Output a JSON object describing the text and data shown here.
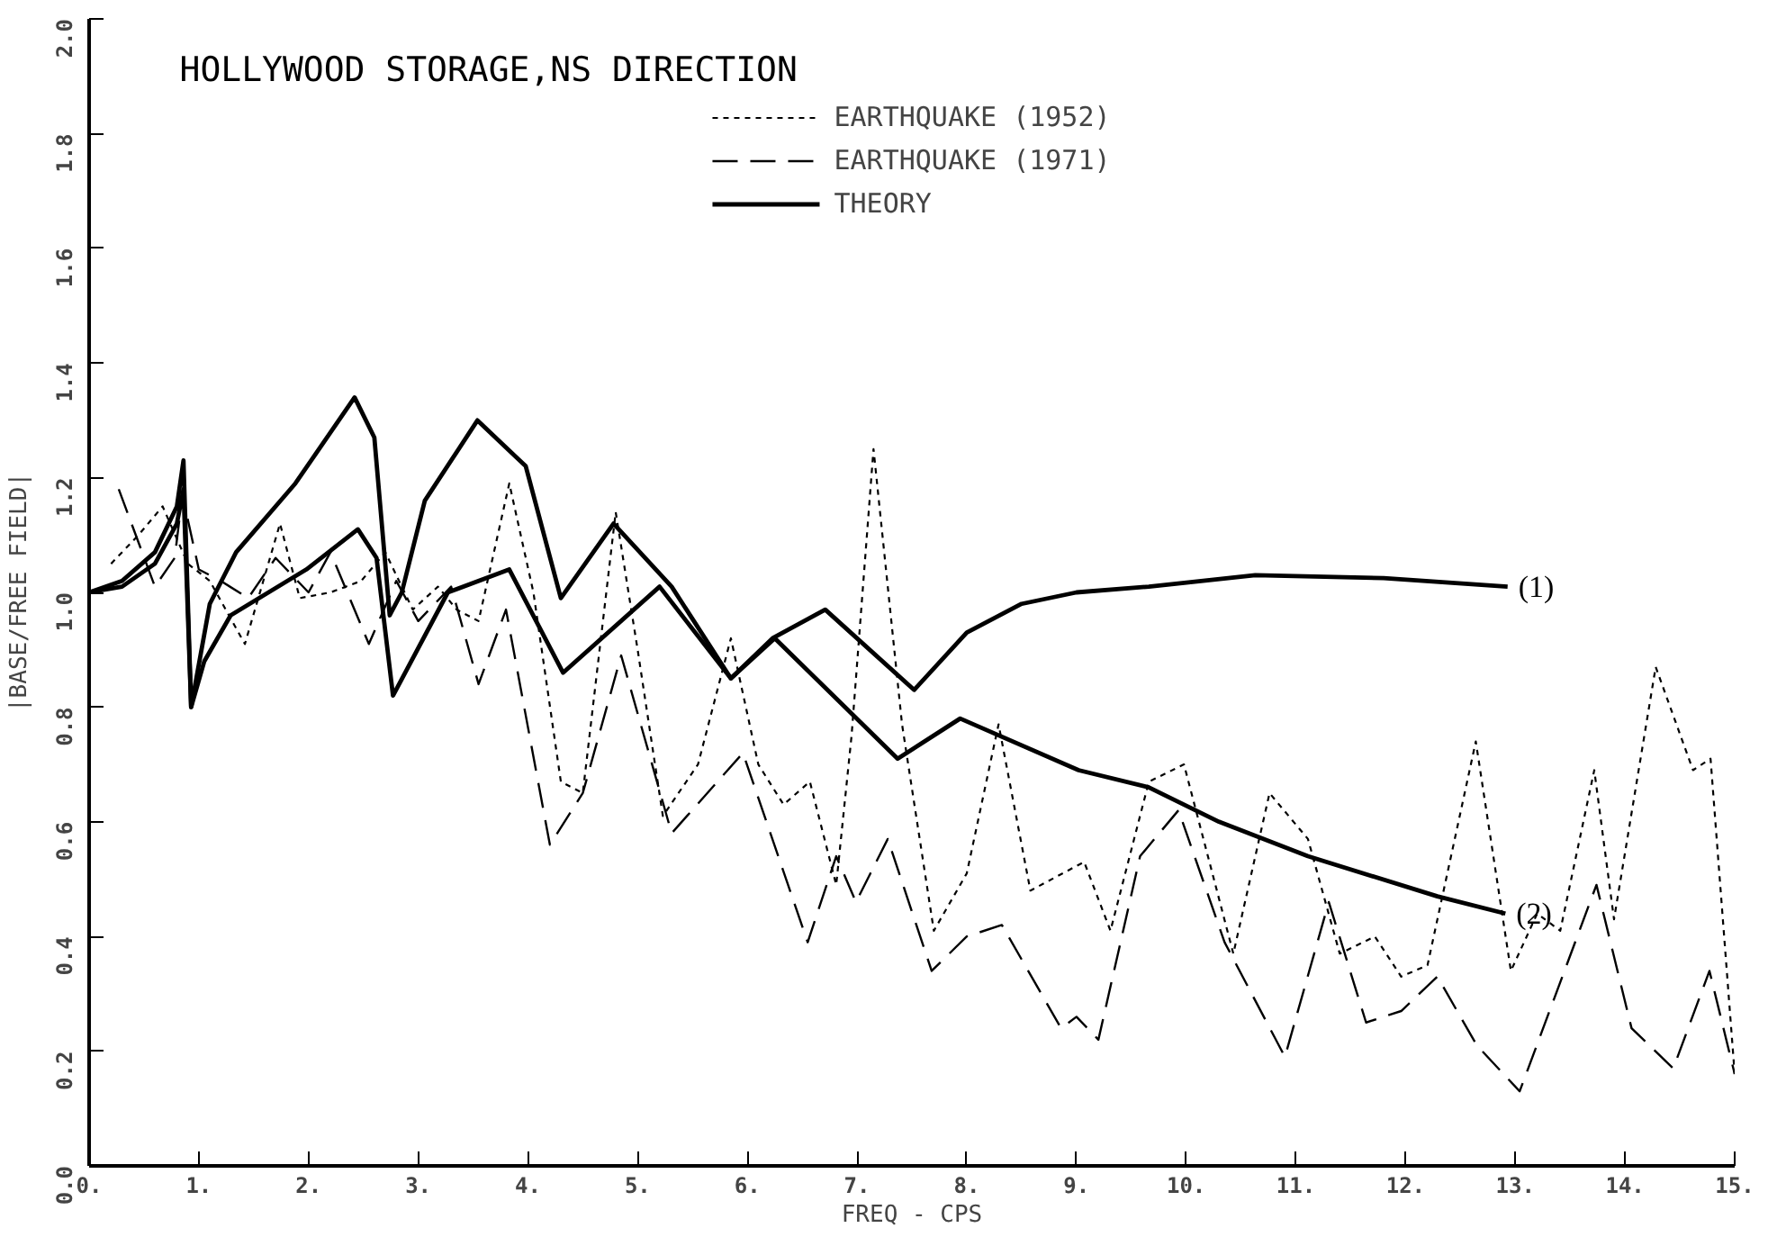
{
  "chart_data": {
    "type": "line",
    "title": "HOLLYWOOD STORAGE,NS DIRECTION",
    "xlabel": "FREQ - CPS",
    "ylabel": "|BASE/FREE FIELD|",
    "xlim": [
      0,
      15
    ],
    "ylim": [
      0,
      2
    ],
    "xticks": [
      {
        "value": 0,
        "label": "0."
      },
      {
        "value": 1,
        "label": "1."
      },
      {
        "value": 2,
        "label": "2."
      },
      {
        "value": 3,
        "label": "3."
      },
      {
        "value": 4,
        "label": "4."
      },
      {
        "value": 5,
        "label": "5."
      },
      {
        "value": 6,
        "label": "6."
      },
      {
        "value": 7,
        "label": "7."
      },
      {
        "value": 8,
        "label": "8."
      },
      {
        "value": 9,
        "label": "9."
      },
      {
        "value": 10,
        "label": "10."
      },
      {
        "value": 11,
        "label": "11."
      },
      {
        "value": 12,
        "label": "12."
      },
      {
        "value": 13,
        "label": "13."
      },
      {
        "value": 14,
        "label": "14."
      },
      {
        "value": 15,
        "label": "15."
      }
    ],
    "yticks": [
      {
        "value": 0,
        "label": "0.0"
      },
      {
        "value": 0.2,
        "label": "0.2"
      },
      {
        "value": 0.4,
        "label": "0.4"
      },
      {
        "value": 0.6,
        "label": "0.6"
      },
      {
        "value": 0.8,
        "label": "0.8"
      },
      {
        "value": 1,
        "label": "1.0"
      },
      {
        "value": 1.2,
        "label": "1.2"
      },
      {
        "value": 1.4,
        "label": "1.4"
      },
      {
        "value": 1.6,
        "label": "1.6"
      },
      {
        "value": 1.8,
        "label": "1.8"
      },
      {
        "value": 2,
        "label": "2.0"
      }
    ],
    "grid": false,
    "legend": "top",
    "marker": "none",
    "series": [
      {
        "name": "EARTHQUAKE (1952)",
        "color": "#000000",
        "line_style": "dotted",
        "x": [
          0.2,
          0.45,
          0.67,
          0.9,
          1.1,
          1.42,
          1.74,
          1.92,
          2.2,
          2.48,
          2.7,
          2.95,
          3.18,
          3.35,
          3.55,
          3.83,
          4.05,
          4.3,
          4.5,
          4.8,
          5.0,
          5.23,
          5.55,
          5.85,
          6.1,
          6.33,
          6.57,
          6.81,
          6.95,
          7.15,
          7.41,
          7.7,
          8.0,
          8.29,
          8.58,
          9.07,
          9.31,
          9.66,
          9.98,
          10.43,
          10.76,
          11.11,
          11.4,
          11.72,
          11.96,
          12.2,
          12.64,
          12.96,
          13.2,
          13.41,
          13.72,
          13.9,
          14.28,
          14.62,
          14.78,
          15.0
        ],
        "values": [
          1.05,
          1.1,
          1.15,
          1.05,
          1.02,
          0.91,
          1.12,
          0.99,
          1.0,
          1.02,
          1.07,
          0.97,
          1.01,
          0.97,
          0.95,
          1.19,
          1.0,
          0.67,
          0.65,
          1.14,
          0.9,
          0.61,
          0.7,
          0.92,
          0.7,
          0.63,
          0.67,
          0.49,
          0.75,
          1.25,
          0.77,
          0.41,
          0.51,
          0.77,
          0.48,
          0.53,
          0.41,
          0.67,
          0.7,
          0.37,
          0.65,
          0.57,
          0.37,
          0.4,
          0.33,
          0.35,
          0.74,
          0.34,
          0.44,
          0.41,
          0.69,
          0.43,
          0.87,
          0.69,
          0.71,
          0.16
        ]
      },
      {
        "name": "EARTHQUAKE (1971)",
        "color": "#000000",
        "line_style": "dashed",
        "x": [
          0.27,
          0.6,
          0.78,
          0.85,
          1.0,
          1.2,
          1.45,
          1.7,
          2.0,
          2.2,
          2.55,
          2.8,
          3.0,
          3.3,
          3.55,
          3.8,
          4.2,
          4.5,
          4.85,
          5.31,
          5.96,
          6.55,
          6.81,
          6.99,
          7.28,
          7.68,
          8.0,
          8.32,
          8.86,
          9.0,
          9.2,
          9.58,
          9.93,
          10.35,
          10.9,
          11.3,
          11.64,
          11.96,
          12.29,
          12.65,
          13.04,
          13.74,
          14.06,
          14.44,
          14.77,
          15.0
        ],
        "values": [
          1.18,
          1.01,
          1.06,
          1.17,
          1.04,
          1.02,
          0.99,
          1.06,
          1.0,
          1.07,
          0.91,
          1.02,
          0.95,
          1.01,
          0.84,
          0.97,
          0.56,
          0.65,
          0.89,
          0.58,
          0.72,
          0.39,
          0.54,
          0.46,
          0.57,
          0.34,
          0.4,
          0.42,
          0.24,
          0.26,
          0.22,
          0.54,
          0.62,
          0.39,
          0.19,
          0.46,
          0.25,
          0.27,
          0.33,
          0.21,
          0.13,
          0.49,
          0.24,
          0.17,
          0.34,
          0.16
        ]
      },
      {
        "name": "THEORY",
        "color": "#000000",
        "line_style": "solid",
        "x": [
          0,
          0.3,
          0.6,
          0.8,
          0.86,
          0.93,
          1.1,
          1.34,
          1.88,
          2.42,
          2.6,
          2.74,
          2.85,
          3.06,
          3.54,
          3.98,
          4.3,
          4.78,
          5.31,
          5.85,
          6.23,
          6.71,
          7.52,
          8.0,
          8.5,
          9.0,
          9.66,
          10.63,
          11.8,
          12.93
        ],
        "values": [
          1.0,
          1.02,
          1.07,
          1.15,
          1.23,
          0.8,
          0.98,
          1.07,
          1.19,
          1.34,
          1.27,
          0.96,
          1.0,
          1.16,
          1.3,
          1.22,
          0.99,
          1.12,
          1.01,
          0.85,
          0.92,
          0.97,
          0.83,
          0.93,
          0.98,
          1.0,
          1.01,
          1.03,
          1.025,
          1.01
        ]
      },
      {
        "color": "#000000",
        "line_style": "solid",
        "x": [
          0,
          0.3,
          0.6,
          0.8,
          0.86,
          0.93,
          1.05,
          1.29,
          1.98,
          2.45,
          2.62,
          2.77,
          3.27,
          3.83,
          4.32,
          5.2,
          5.85,
          6.25,
          7.37,
          7.94,
          9.02,
          9.66,
          10.3,
          11.11,
          12.29,
          12.91
        ],
        "values": [
          1.0,
          1.01,
          1.05,
          1.12,
          1.18,
          0.8,
          0.88,
          0.96,
          1.04,
          1.11,
          1.06,
          0.82,
          1.0,
          1.04,
          0.86,
          1.01,
          0.85,
          0.92,
          0.71,
          0.78,
          0.69,
          0.66,
          0.6,
          0.54,
          0.47,
          0.44
        ]
      }
    ],
    "annotations": [
      {
        "text": "(1)",
        "x": 12.93,
        "y": 1.01
      },
      {
        "text": "(2)",
        "x": 12.91,
        "y": 0.44
      }
    ]
  }
}
